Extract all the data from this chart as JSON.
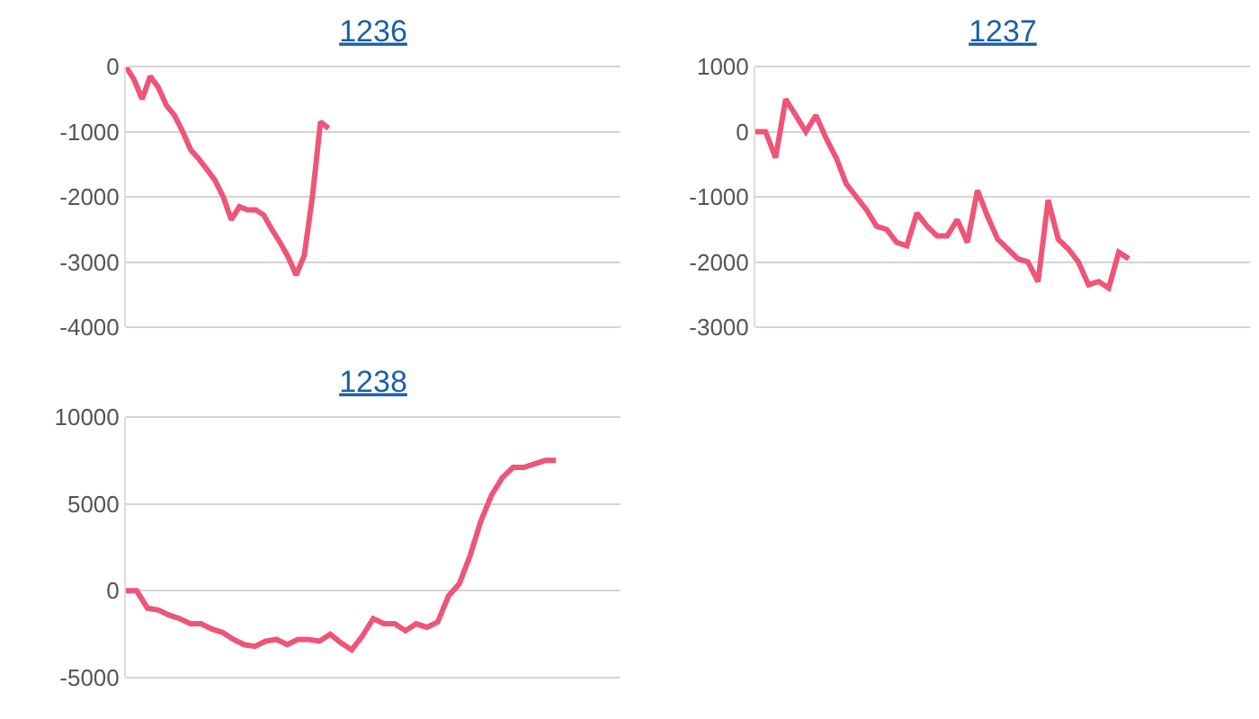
{
  "chart_data": [
    {
      "type": "line",
      "title": "1236",
      "color": "#ee5577",
      "grid": "y",
      "tick_labels": "y",
      "ylim": [
        -4000,
        0
      ],
      "yticks": [
        0,
        -1000,
        -2000,
        -3000,
        -4000
      ],
      "categories": [
        null,
        null,
        null,
        null,
        null,
        null,
        null,
        null,
        null,
        null,
        null,
        null,
        null,
        null,
        null,
        null,
        null,
        null,
        null,
        null,
        null,
        null,
        null,
        null,
        null,
        null,
        null,
        null,
        null,
        null,
        null,
        null,
        null,
        null,
        null,
        null,
        null,
        null,
        null,
        null,
        null,
        null,
        null,
        null,
        null,
        null,
        null,
        null,
        null,
        null,
        null,
        null,
        null,
        null,
        null,
        null,
        null,
        null,
        null,
        null,
        null,
        null
      ],
      "values": [
        0,
        -200,
        -500,
        -150,
        -320,
        -600,
        -750,
        -1000,
        -1280,
        -1420,
        -1580,
        -1750,
        -2000,
        -2350,
        -2150,
        -2200,
        -2200,
        -2280,
        -2500,
        -2700,
        -2920,
        -3200,
        -2900,
        -2000,
        -850,
        -950,
        null,
        null,
        null,
        null,
        null,
        null,
        null,
        null,
        null,
        null,
        null,
        null,
        null,
        null,
        null,
        null,
        null,
        null,
        null,
        null,
        null,
        null,
        null,
        null,
        null,
        null,
        null,
        null,
        null,
        null,
        null,
        null,
        null,
        null,
        null,
        null
      ]
    },
    {
      "type": "line",
      "title": "1237",
      "color": "#ee5577",
      "grid": "y",
      "tick_labels": "y",
      "ylim": [
        -3000,
        1000
      ],
      "yticks": [
        1000,
        0,
        -1000,
        -2000,
        -3000
      ],
      "categories": [
        null,
        null,
        null,
        null,
        null,
        null,
        null,
        null,
        null,
        null,
        null,
        null,
        null,
        null,
        null,
        null,
        null,
        null,
        null,
        null,
        null,
        null,
        null,
        null,
        null,
        null,
        null,
        null,
        null,
        null,
        null,
        null,
        null,
        null,
        null,
        null,
        null,
        null,
        null,
        null,
        null,
        null,
        null,
        null,
        null,
        null,
        null,
        null,
        null,
        null
      ],
      "values": [
        0,
        0,
        -400,
        500,
        250,
        0,
        250,
        -100,
        -400,
        -800,
        -1000,
        -1200,
        -1450,
        -1500,
        -1700,
        -1750,
        -1250,
        -1450,
        -1600,
        -1600,
        -1350,
        -1700,
        -900,
        -1300,
        -1650,
        -1800,
        -1950,
        -2000,
        -2300,
        -1050,
        -1650,
        -1800,
        -2000,
        -2350,
        -2300,
        -2400,
        -1850,
        -1950,
        null,
        null,
        null,
        null,
        null,
        null,
        null,
        null,
        null,
        null,
        null,
        null
      ]
    },
    {
      "type": "line",
      "title": "1238",
      "color": "#ee5577",
      "grid": "y",
      "tick_labels": "y",
      "ylim": [
        -5000,
        10000
      ],
      "yticks": [
        10000,
        5000,
        0,
        -5000
      ],
      "categories": [
        null,
        null,
        null,
        null,
        null,
        null,
        null,
        null,
        null,
        null,
        null,
        null,
        null,
        null,
        null,
        null,
        null,
        null,
        null,
        null,
        null,
        null,
        null,
        null,
        null,
        null,
        null,
        null,
        null,
        null,
        null,
        null,
        null,
        null,
        null,
        null,
        null,
        null,
        null,
        null,
        null,
        null,
        null,
        null,
        null,
        null,
        null
      ],
      "values": [
        0,
        0,
        -1000,
        -1100,
        -1400,
        -1600,
        -1900,
        -1900,
        -2200,
        -2400,
        -2800,
        -3100,
        -3200,
        -2900,
        -2800,
        -3100,
        -2800,
        -2800,
        -2900,
        -2500,
        -3000,
        -3400,
        -2600,
        -1600,
        -1900,
        -1900,
        -2300,
        -1900,
        -2100,
        -1800,
        -300,
        400,
        2000,
        4000,
        5500,
        6500,
        7100,
        7100,
        7300,
        7500,
        7500,
        null,
        null,
        null,
        null,
        null,
        null
      ]
    }
  ]
}
